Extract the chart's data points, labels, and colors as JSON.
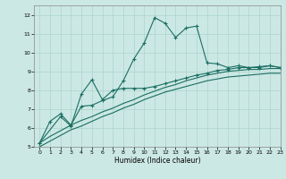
{
  "bg_color": "#cce8e4",
  "line_color": "#1a6e62",
  "grid_color": "#b0d8d0",
  "xlabel": "Humidex (Indice chaleur)",
  "ylim": [
    5,
    12.5
  ],
  "xlim": [
    -0.5,
    23
  ],
  "yticks": [
    5,
    6,
    7,
    8,
    9,
    10,
    11,
    12
  ],
  "xticks": [
    0,
    1,
    2,
    3,
    4,
    5,
    6,
    7,
    8,
    9,
    10,
    11,
    12,
    13,
    14,
    15,
    16,
    17,
    18,
    19,
    20,
    21,
    22,
    23
  ],
  "line1_x": [
    0,
    1,
    2,
    3,
    4,
    5,
    6,
    7,
    8,
    9,
    10,
    11,
    12,
    13,
    14,
    15,
    16,
    17,
    18,
    19,
    20,
    21,
    22,
    23
  ],
  "line1_y": [
    5.2,
    6.35,
    6.75,
    6.15,
    7.15,
    7.2,
    7.45,
    7.65,
    8.5,
    9.65,
    10.5,
    11.85,
    11.55,
    10.8,
    11.3,
    11.4,
    9.45,
    9.4,
    9.2,
    9.3,
    9.2,
    9.2,
    9.3,
    9.2
  ],
  "line2_x": [
    0,
    2,
    3,
    4,
    5,
    6,
    7,
    8,
    9,
    10,
    11,
    12,
    13,
    14,
    15,
    16,
    17,
    18,
    19,
    20,
    21,
    22,
    23
  ],
  "line2_y": [
    5.2,
    6.6,
    6.1,
    7.8,
    8.55,
    7.5,
    8.0,
    8.1,
    8.1,
    8.1,
    8.2,
    8.35,
    8.5,
    8.65,
    8.8,
    8.9,
    9.05,
    9.1,
    9.2,
    9.2,
    9.25,
    9.3,
    9.2
  ],
  "line3_x": [
    0,
    1,
    2,
    3,
    4,
    5,
    6,
    7,
    8,
    9,
    10,
    11,
    12,
    13,
    14,
    15,
    16,
    17,
    18,
    19,
    20,
    21,
    22,
    23
  ],
  "line3_y": [
    5.2,
    5.55,
    5.85,
    6.15,
    6.4,
    6.6,
    6.85,
    7.05,
    7.3,
    7.5,
    7.75,
    7.95,
    8.15,
    8.3,
    8.5,
    8.65,
    8.8,
    8.9,
    9.0,
    9.05,
    9.1,
    9.1,
    9.15,
    9.15
  ],
  "line4_x": [
    0,
    1,
    2,
    3,
    4,
    5,
    6,
    7,
    8,
    9,
    10,
    11,
    12,
    13,
    14,
    15,
    16,
    17,
    18,
    19,
    20,
    21,
    22,
    23
  ],
  "line4_y": [
    5.0,
    5.3,
    5.6,
    5.9,
    6.1,
    6.35,
    6.6,
    6.8,
    7.05,
    7.25,
    7.5,
    7.7,
    7.9,
    8.05,
    8.2,
    8.35,
    8.5,
    8.6,
    8.7,
    8.75,
    8.8,
    8.85,
    8.9,
    8.9
  ]
}
